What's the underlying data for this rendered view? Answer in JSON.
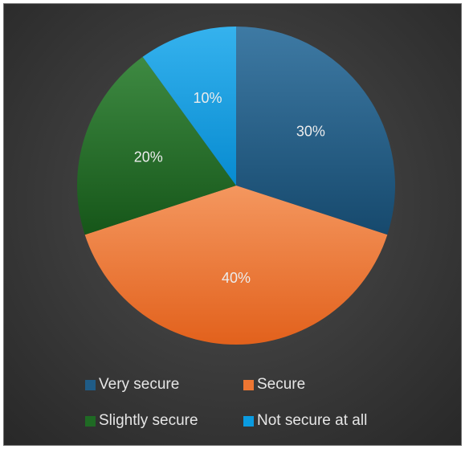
{
  "chart_data": {
    "type": "pie",
    "title": "",
    "categories": [
      "Very secure",
      "Secure",
      "Slightly secure",
      "Not secure at all"
    ],
    "values": [
      30,
      40,
      20,
      10
    ],
    "labels": [
      "30%",
      "40%",
      "20%",
      "10%"
    ],
    "colors": [
      "#1f5c87",
      "#ee7632",
      "#1f6a24",
      "#0a9be0"
    ],
    "start_angle_deg": 0,
    "direction": "clockwise",
    "legend_position": "bottom",
    "background": "#3b3b3b"
  }
}
